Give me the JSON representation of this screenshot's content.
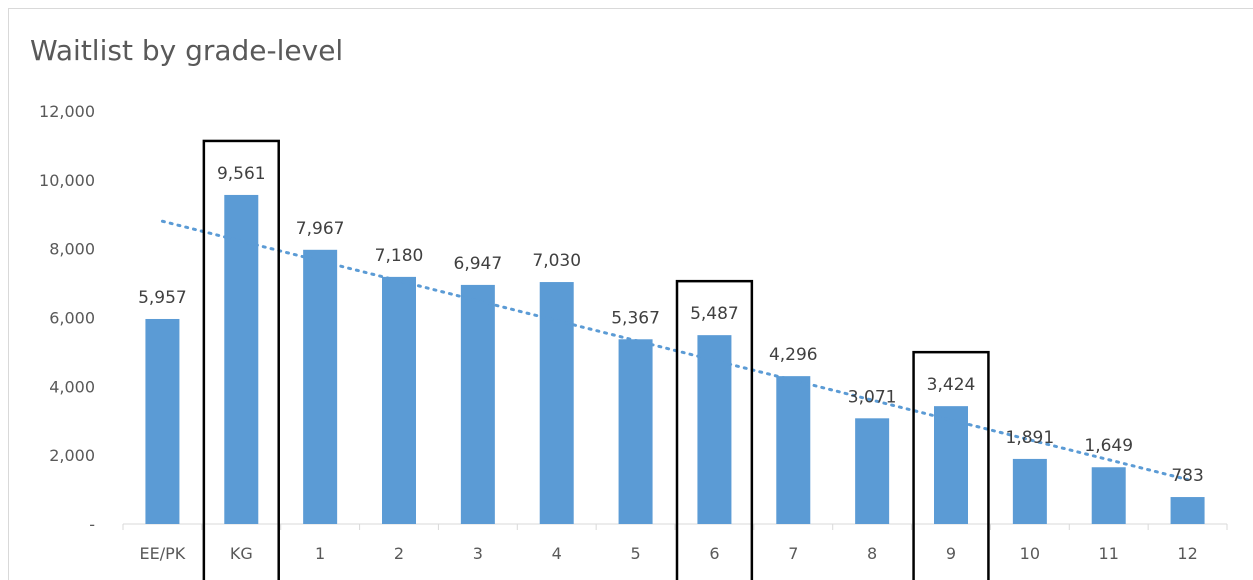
{
  "chart_data": {
    "type": "bar",
    "title": "Waitlist by grade-level",
    "categories": [
      "EE/PK",
      "KG",
      "1",
      "2",
      "3",
      "4",
      "5",
      "6",
      "7",
      "8",
      "9",
      "10",
      "11",
      "12"
    ],
    "values": [
      5957,
      9561,
      7967,
      7180,
      6947,
      7030,
      5367,
      5487,
      4296,
      3071,
      3424,
      1891,
      1649,
      783
    ],
    "data_labels": [
      "5,957",
      "9,561",
      "7,967",
      "7,180",
      "6,947",
      "7,030",
      "5,367",
      "5,487",
      "4,296",
      "3,071",
      "3,424",
      "1,891",
      "1,649",
      "783"
    ],
    "y_ticks": [
      {
        "value": 0,
        "label": "-"
      },
      {
        "value": 2000,
        "label": "2,000"
      },
      {
        "value": 4000,
        "label": "4,000"
      },
      {
        "value": 6000,
        "label": "6,000"
      },
      {
        "value": 8000,
        "label": "8,000"
      },
      {
        "value": 10000,
        "label": "10,000"
      },
      {
        "value": 12000,
        "label": "12,000"
      }
    ],
    "ylim": [
      0,
      12000
    ],
    "grid": false,
    "trendline": {
      "type": "linear",
      "style": "dotted"
    },
    "highlighted_categories": [
      "KG",
      "6",
      "9"
    ],
    "xlabel": "",
    "ylabel": "",
    "colors": {
      "bar": "#5b9bd5",
      "trendline": "#5b9bd5",
      "highlight_box": "#000000"
    }
  }
}
